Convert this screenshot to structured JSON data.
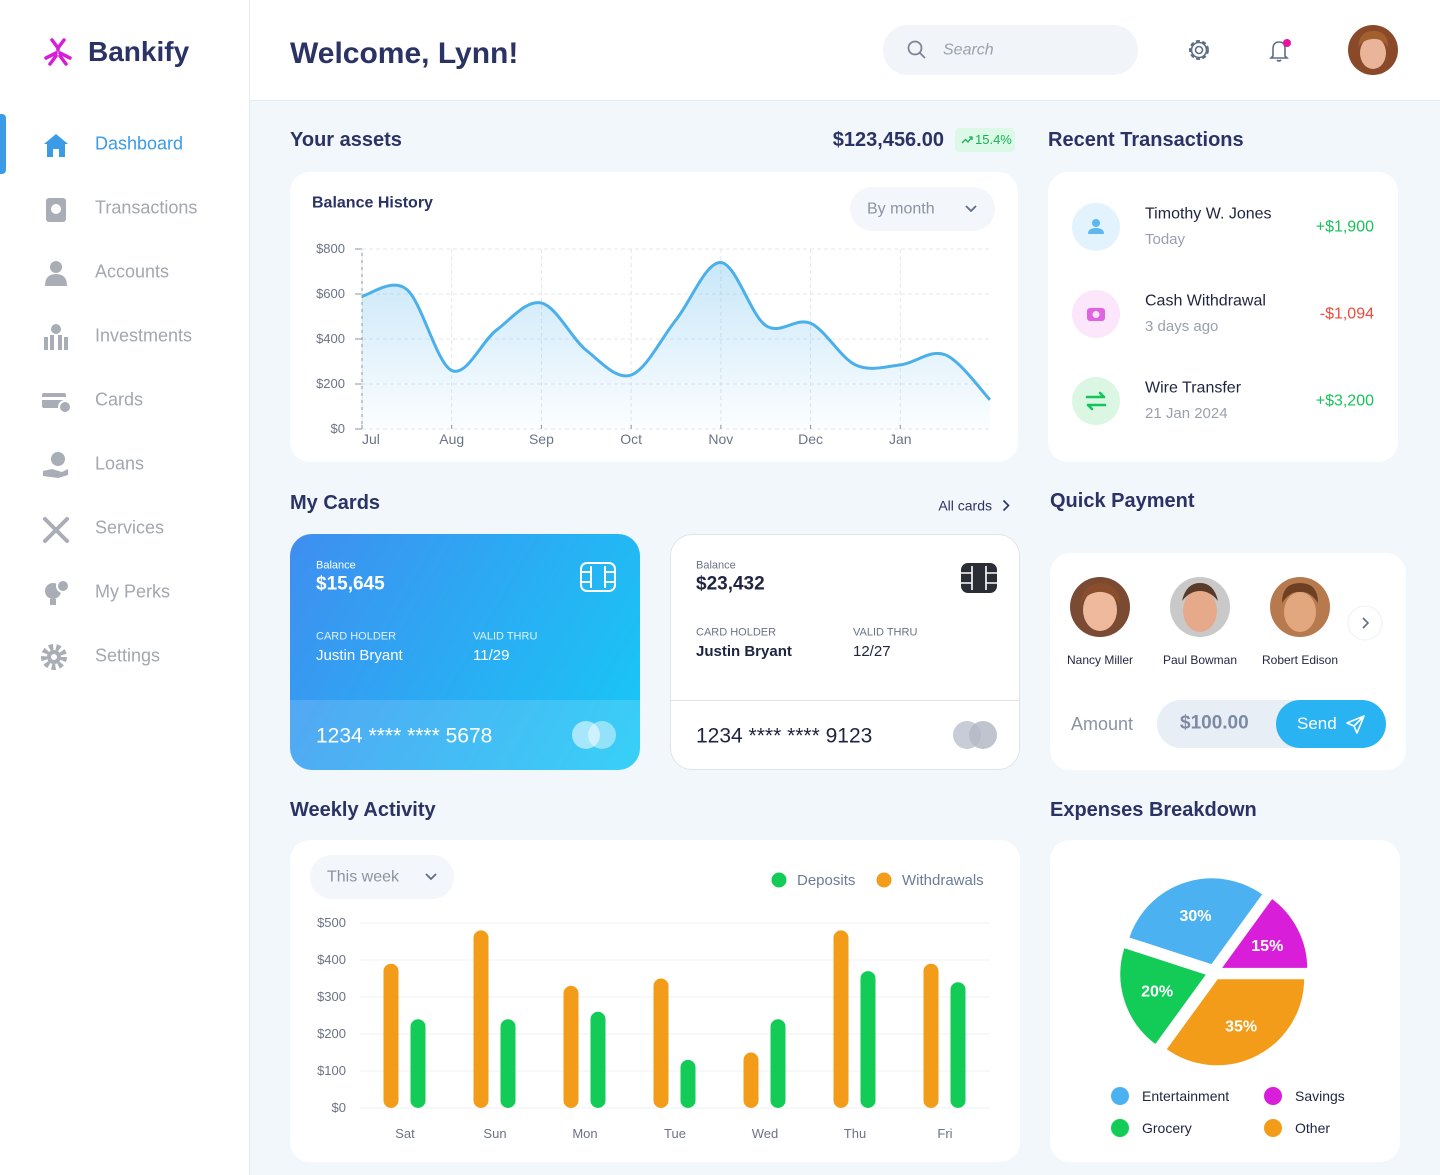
{
  "brand": "Bankify",
  "header": {
    "title": "Welcome, Lynn!",
    "search": "Search"
  },
  "nav": [
    "Dashboard",
    "Transactions",
    "Accounts",
    "Investments",
    "Cards",
    "Loans",
    "Services",
    "My Perks",
    "Settings"
  ],
  "assets": {
    "title": "Your assets",
    "total": "$123,456.00",
    "change": "15.4%"
  },
  "balance_filter": "By month",
  "transactions": {
    "title": "Recent Transactions",
    "items": [
      {
        "name": "Timothy W. Jones",
        "time": "Today",
        "amount": "+$1,900"
      },
      {
        "name": "Cash Withdrawal",
        "time": "3 days ago",
        "amount": "-$1,094"
      },
      {
        "name": "Wire Transfer",
        "time": "21 Jan 2024",
        "amount": "+$3,200"
      }
    ]
  },
  "cards": {
    "title": "My Cards",
    "link": "All cards",
    "items": [
      {
        "balance_label": "Balance",
        "balance": "$15,645",
        "holder_label": "CARD HOLDER",
        "holder": "Justin Bryant",
        "valid_label": "VALID THRU",
        "valid": "11/29",
        "number": "1234 **** **** 5678"
      },
      {
        "balance_label": "Balance",
        "balance": "$23,432",
        "holder_label": "CARD HOLDER",
        "holder": "Justin Bryant",
        "valid_label": "VALID THRU",
        "valid": "12/27",
        "number": "1234 **** **** 9123"
      }
    ]
  },
  "quick_payment": {
    "title": "Quick Payment",
    "contacts": [
      "Nancy Miller",
      "Paul Bowman",
      "Robert Edison"
    ],
    "amount_label": "Amount",
    "amount": "$100.00",
    "button": "Send"
  },
  "weekly_filter": "This week",
  "chart_data": [
    {
      "type": "line",
      "title": "Balance History",
      "categories": [
        "Jul",
        null,
        "Aug",
        null,
        "Sep",
        null,
        "Oct",
        null,
        "Nov",
        null,
        "Dec",
        null,
        "Jan",
        null,
        null
      ],
      "values": [
        590,
        620,
        260,
        440,
        560,
        350,
        240,
        485,
        740,
        460,
        470,
        285,
        285,
        330,
        130
      ],
      "color": "#4bb0ea",
      "ylim": [
        0,
        800
      ],
      "yticks": [
        {
          "value": 0,
          "label": "$0"
        },
        {
          "value": 200,
          "label": "$200"
        },
        {
          "value": 400,
          "label": "$400"
        },
        {
          "value": 600,
          "label": "$600"
        },
        {
          "value": 800,
          "label": "$800"
        }
      ],
      "grid": true
    },
    {
      "type": "bar",
      "title": "Weekly Activity",
      "categories": [
        "Sat",
        "Sun",
        "Mon",
        "Tue",
        "Wed",
        "Thu",
        "Fri"
      ],
      "series": [
        {
          "name": "Deposits",
          "color": "#12cc57",
          "values": [
            240,
            240,
            260,
            130,
            240,
            370,
            340
          ]
        },
        {
          "name": "Withdrawals",
          "color": "#f39c19",
          "values": [
            390,
            480,
            330,
            350,
            150,
            480,
            390
          ]
        }
      ],
      "ylim": [
        0,
        500
      ],
      "yticks": [
        {
          "value": 0,
          "label": "$0"
        },
        {
          "value": 100,
          "label": "$100"
        },
        {
          "value": 200,
          "label": "$200"
        },
        {
          "value": 300,
          "label": "$300"
        },
        {
          "value": 400,
          "label": "$400"
        },
        {
          "value": 500,
          "label": "$500"
        }
      ],
      "grid": true
    },
    {
      "type": "pie",
      "title": "Expenses Breakdown",
      "categories": [
        "Entertainment",
        "Savings",
        "Other",
        "Grocery"
      ],
      "values": [
        30,
        15,
        35,
        20
      ],
      "value_labels": [
        "30%",
        "15%",
        "35%",
        "20%"
      ],
      "colors": [
        "#4cb1f1",
        "#d91ed9",
        "#f39c19",
        "#12cc57"
      ]
    }
  ]
}
